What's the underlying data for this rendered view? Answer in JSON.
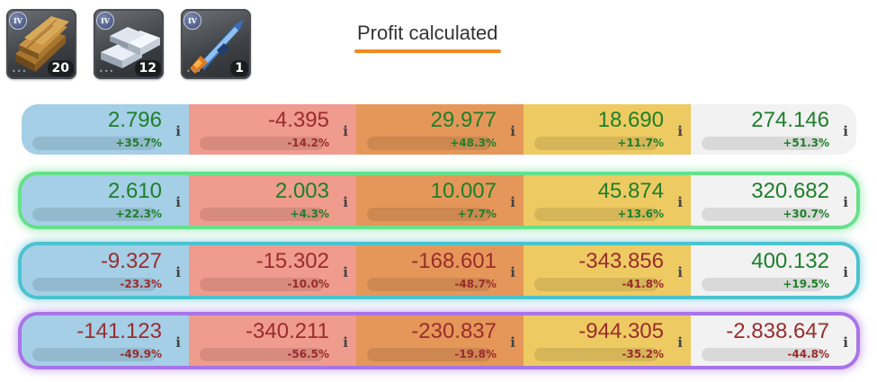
{
  "title": "Profit calculated",
  "items": [
    {
      "name": "planks-icon",
      "tier": "IV",
      "count": "20"
    },
    {
      "name": "metal-bars-icon",
      "tier": "IV",
      "count": "12"
    },
    {
      "name": "weapon-icon",
      "tier": "IV",
      "count": "1"
    }
  ],
  "info_glyph": "i",
  "rows": [
    {
      "cells": [
        {
          "value": "2.796",
          "pct": "+35.7%",
          "sign": "pos"
        },
        {
          "value": "-4.395",
          "pct": "-14.2%",
          "sign": "neg"
        },
        {
          "value": "29.977",
          "pct": "+48.3%",
          "sign": "pos"
        },
        {
          "value": "18.690",
          "pct": "+11.7%",
          "sign": "pos"
        },
        {
          "value": "274.146",
          "pct": "+51.3%",
          "sign": "pos"
        }
      ]
    },
    {
      "cells": [
        {
          "value": "2.610",
          "pct": "+22.3%",
          "sign": "pos"
        },
        {
          "value": "2.003",
          "pct": "+4.3%",
          "sign": "pos"
        },
        {
          "value": "10.007",
          "pct": "+7.7%",
          "sign": "pos"
        },
        {
          "value": "45.874",
          "pct": "+13.6%",
          "sign": "pos"
        },
        {
          "value": "320.682",
          "pct": "+30.7%",
          "sign": "pos"
        }
      ]
    },
    {
      "cells": [
        {
          "value": "-9.327",
          "pct": "-23.3%",
          "sign": "neg"
        },
        {
          "value": "-15.302",
          "pct": "-10.0%",
          "sign": "neg"
        },
        {
          "value": "-168.601",
          "pct": "-48.7%",
          "sign": "neg"
        },
        {
          "value": "-343.856",
          "pct": "-41.8%",
          "sign": "neg"
        },
        {
          "value": "400.132",
          "pct": "+19.5%",
          "sign": "pos"
        }
      ]
    },
    {
      "cells": [
        {
          "value": "-141.123",
          "pct": "-49.9%",
          "sign": "neg"
        },
        {
          "value": "-340.211",
          "pct": "-56.5%",
          "sign": "neg"
        },
        {
          "value": "-230.837",
          "pct": "-19.8%",
          "sign": "neg"
        },
        {
          "value": "-944.305",
          "pct": "-35.2%",
          "sign": "neg"
        },
        {
          "value": "-2.838.647",
          "pct": "-44.8%",
          "sign": "neg"
        }
      ]
    }
  ]
}
